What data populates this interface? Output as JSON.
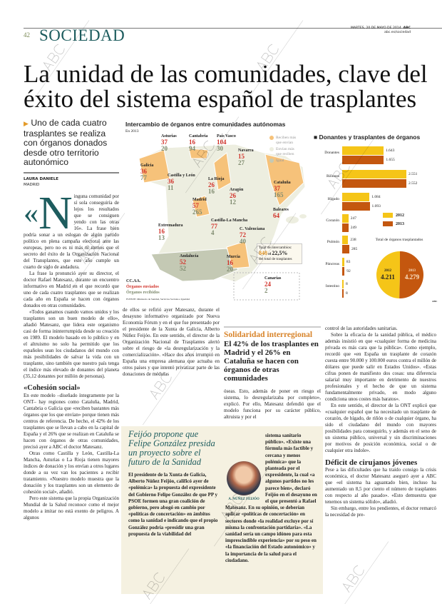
{
  "header": {
    "page_number": "42",
    "section": "SOCIEDAD",
    "date": "MARTES, 20 DE MAYO DE 2014",
    "brand": "ABC",
    "url": "abc.es/sociedad"
  },
  "headline": "La unidad de las comunidades, clave del éxito del sistema español de trasplantes",
  "deck": "Uno de cada cuatro trasplantes se realiza con órganos donados desde otro territorio autonómico",
  "byline": {
    "author": "LAURA DANIELE",
    "place": "MADRID"
  },
  "watermark": "ABC",
  "article": {
    "dropcap": "N",
    "dropcap_quote": "«",
    "p1": "inguna comunidad por sí sola conseguiría de lejos los resultados que se consiguen yendo con las otras 16». La frase bien podría sonar a un eslogan de algún partido político en plena campaña electoral ante las europeas, pero no es ni más ni menos que el secreto del éxito de la Organización Nacional del Transplantes, que este año cumple un cuarto de siglo de andadura.",
    "p2": "La frase la pronunció ayer su director, el doctor Rafael Matesanz, durante un encuentro informativo en Madrid en el que recordó que uno de cada cuatro trasplantes que se realizan cada año en España se hacen con órganos donados en otras comunidades.",
    "p3": "«Todos ganamos cuando vamos unidos y los trasplantes son un buen modelo de ello», añadió Matesanz, que lidera este organismo casi de forma ininterrumpida desde su creación en 1989. El modelo basado en lo público y en el altruismo no solo ha permitido que los españoles sean los ciudadanos del mundo con más posibilidades de salvar la vida con un trasplante, sino también que nuestro país tenga el índice más elevado de donantes del planeta (35,12 donantes por millón de personas).",
    "h1": "«Cohesión social»",
    "p4": "En este modelo –diseñado íntegramente por la ONT– hay regiones como Cataluña, Madrid, Cantabria o Galicia que «reciben bastantes más órganos que los que envían» porque tienen más centros de referencia. De hecho, el 42% de los trasplantes que se llevan a cabo en la capital de España y el 26% que se realizan en Cataluña se hacen con órganos de otras comunidades, precisó ayer a ABC el doctor Matesanz.",
    "p5": "Otras como Castilla y León, Castilla-La Mancha, Asturias o La Rioja tienen mayores índices de donación y los envían a otros lugares donde a su vez van los pacientes a recibir tratamiento. «Nuestro modelo muestra que la donación y los trasplantes son un elemento de cohesión social», añadió.",
    "p6": "Pero este sistema que la propia Organización Mundial de la Salud reconoce como el mejor modelo a imitar no está exento de peligros. A algunos",
    "p7": "de ellos se refirió ayer Matesanz, durante el desayuno informativo organizado por Nueva Economía Fórum y en el que fue presentado por el presidente de la Xunta de Galicia, Alberto Núñez Feijóo. En este sentido, el director de la Organización Nacional de Trasplantes alertó sobre el riesgo de «la desregularización y la comercialización». «Hace dos años irrumpió en España una empresa alemana que actuaba en otros países y que intentó privatizar parte de las donaciones de médulas",
    "p8": "óseas. Esto, además de poner en riesgo el sistema, lo desregularizaba por completo», explicó. Por ello, Matesanz defendió que el modelo funciona por su carácter público, altruista y por el",
    "p9": "control de las autoridades sanitarias.",
    "p10": "Sobre la eficacia de la sanidad pública, el médico además insistió en que «cualquier forma de medicina privada es más cara que la pública». Como ejemplo, recordó que «en España un trasplante de corazón cuesta entre 90.000 y 100.000 euros contra el millón de dólares que puede salir en Estados Unidos». «Estas cifras ponen de manifiesto dos cosas: una diferencia salarial muy importante en detrimento de nuestros profesionales y el hecho de que un sistema fundamentalmente privado, en modo alguno condiciona unos costes más baratos».",
    "p11": "En este sentido, el director de la ONT explicó que «cualquier español que ha necesitado un trasplante de corazón, de hígado, de riñón o de cualquier órgano, ha sido el ciudadano del mundo con mayores posibilidades para conseguirlo, y además en el seno de un sistema público, universal y sin discriminaciones por motivos de posición económica, social o de cualquier otra índole».",
    "h2": "Déficit de cirujanos jóvenes",
    "p12": "Pese a las dificultades que ha traído consigo la crisis económica, el doctor Matesanz aseguró ayer a ABC que «el sistema ha aguantado bien, incluso ha aumentado un 8,5 por ciento el número de trasplantes con respecto al año pasado». «Esto demuestra que tenemos un sistema sólido», añadió.",
    "p13": "Sin embargo, entre los pendientes, el doctor remarcó la necesidad de pre-"
  },
  "pullout": {
    "kicker": "Solidaridad interregional",
    "text": "El 42% de los trasplantes en Madrid y el 26% en Cataluña se hacen con órganos de otras comunidades"
  },
  "sidebar": {
    "title": "Feijóo propone que Felipe González presida un proyecto sobre el futuro de la Sanidad",
    "p1": "El presidente de la Xunta de Galicia, Alberto Núñez Feijóo, calificó ayer de «polémica» la propuesta del expresidente del Gobierno Felipe González de que PP y PSOE formen una gran coalición de gobierno, pero abogó en cambio por «políticas de concertación» en ámbitos como la sanidad e indicando que el propio González podría «presidir una gran propuesta de la viabilidad del",
    "p2": "sistema sanitario público». «Existe una fórmula más factible y cercana y menos polémica» que la planteada por el expresidente, la cual «a algunos partidos no les parece bien», declaró Feijóo en el desayuno en el que presentó a Rafael Matesanz. En su opinión, se deberían aplicar «políticas de concertación» en sectores donde «la realidad excluye por sí misma la confrontación partidaria». «La sanidad sería un campo idóneo para esta imprescindible experiencia» por su peso en «la financiación del Estado autonómico» y la importancia de la salud para el ciudadano.",
    "photo_caption": "A. NÚÑEZ FEIJÓO"
  },
  "map": {
    "title": "Intercambio de órganos entre comunidades autónomas",
    "subtitle": "En 2013",
    "legend": [
      {
        "label": "Reciben más que envían",
        "color": "#f6c27a"
      },
      {
        "label": "Envían más que reciben",
        "color": "#edeee0"
      },
      {
        "label": "Igual",
        "color": "#c4c9b4"
      }
    ],
    "key_title": "CC.AA.",
    "key_sent": "Órganos enviados",
    "key_received": "Órganos recibidos",
    "colors": {
      "sent": "#d1332b",
      "received": "#7e8a6e"
    },
    "regions": [
      {
        "name": "Asturias",
        "sent": "37",
        "received": "20"
      },
      {
        "name": "Cantabria",
        "sent": "16",
        "received": "94"
      },
      {
        "name": "País Vasco",
        "sent": "104",
        "received": "30"
      },
      {
        "name": "Navarra",
        "sent": "15",
        "received": "27"
      },
      {
        "name": "Galicia",
        "sent": "36",
        "received": "77"
      },
      {
        "name": "Castilla y León",
        "sent": "36",
        "received": "11"
      },
      {
        "name": "La Rioja",
        "sent": "26",
        "received": "16"
      },
      {
        "name": "Aragón",
        "sent": "26",
        "received": "12"
      },
      {
        "name": "Cataluña",
        "sent": "37",
        "received": "165"
      },
      {
        "name": "Madrid",
        "sent": "57",
        "received": "265"
      },
      {
        "name": "Baleares",
        "sent": "64",
        "received": ""
      },
      {
        "name": "Castilla-La Mancha",
        "sent": "77",
        "received": "4"
      },
      {
        "name": "Extremadura",
        "sent": "16",
        "received": "13"
      },
      {
        "name": "C. Valenciana",
        "sent": "72",
        "received": "40"
      },
      {
        "name": "Andalucía",
        "sent": "52",
        "received": "52"
      },
      {
        "name": "Murcia",
        "sent": "16",
        "received": "20"
      },
      {
        "name": "Canarias",
        "sent": "24",
        "received": "2"
      }
    ],
    "total": {
      "label": "Total de intercambios:",
      "value": "848",
      "connector": "el",
      "percent": "22,5%",
      "suffix": "del total de trasplantes"
    },
    "source": "FUENTE: Ministerio de Sanidad, Servicios Sociales e Igualdad"
  },
  "chart_data": {
    "type": "bar",
    "title": "Donantes y trasplantes de órganos",
    "categories": [
      "Donantes",
      "Riñones",
      "Hígado",
      "Corazón",
      "Pulmón",
      "Páncreas",
      "Intestino"
    ],
    "series": [
      {
        "name": "2012",
        "color": "#f5c518",
        "values": [
          1643,
          2551,
          1084,
          247,
          238,
          83,
          8
        ],
        "labels": [
          "1.643",
          "2.551",
          "1.084",
          "247",
          "238",
          "83",
          "8"
        ]
      },
      {
        "name": "2013",
        "color": "#c4570f",
        "values": [
          1655,
          2552,
          1093,
          249,
          285,
          92,
          8
        ],
        "labels": [
          "1.655",
          "2.552",
          "1.093",
          "249",
          "285",
          "92",
          "8"
        ]
      }
    ],
    "pie": {
      "title": "Total de órganos trasplantados",
      "slices": [
        {
          "name": "2012",
          "value": 4211,
          "label": "4.211"
        },
        {
          "name": "2013",
          "value": 4279,
          "label": "4.279"
        }
      ]
    },
    "credit": "ABC"
  }
}
